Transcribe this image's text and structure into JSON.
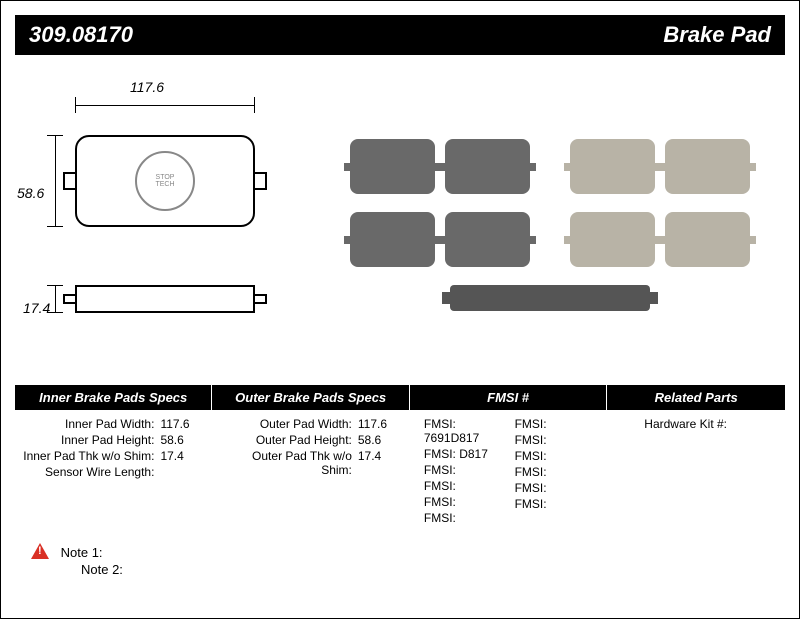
{
  "header": {
    "part_number": "309.08170",
    "part_type": "Brake Pad"
  },
  "dimensions": {
    "width": "117.6",
    "height": "58.6",
    "thickness": "17.4"
  },
  "spec_columns": {
    "inner": {
      "title": "Inner Brake Pads Specs",
      "rows": [
        {
          "k": "Inner Pad Width:",
          "v": "117.6"
        },
        {
          "k": "Inner Pad Height:",
          "v": "58.6"
        },
        {
          "k": "Inner Pad Thk w/o Shim:",
          "v": "17.4"
        },
        {
          "k": "Sensor Wire Length:",
          "v": ""
        }
      ]
    },
    "outer": {
      "title": "Outer Brake Pads Specs",
      "rows": [
        {
          "k": "Outer Pad Width:",
          "v": "117.6"
        },
        {
          "k": "Outer Pad Height:",
          "v": "58.6"
        },
        {
          "k": "Outer Pad Thk w/o Shim:",
          "v": "17.4"
        }
      ]
    },
    "fmsi": {
      "title": "FMSI #",
      "left": [
        "7691D817",
        "D817",
        "",
        "",
        "",
        ""
      ],
      "right": [
        "",
        "",
        "",
        "",
        "",
        ""
      ]
    },
    "related": {
      "title": "Related Parts",
      "rows": [
        {
          "k": "Hardware Kit #:",
          "v": ""
        }
      ]
    }
  },
  "notes": {
    "note1_label": "Note 1:",
    "note2_label": "Note 2:"
  },
  "colors": {
    "header_bg": "#000000",
    "header_fg": "#ffffff",
    "pad_dark": "#696969",
    "pad_light": "#b8b3a6",
    "warn": "#d93025"
  }
}
